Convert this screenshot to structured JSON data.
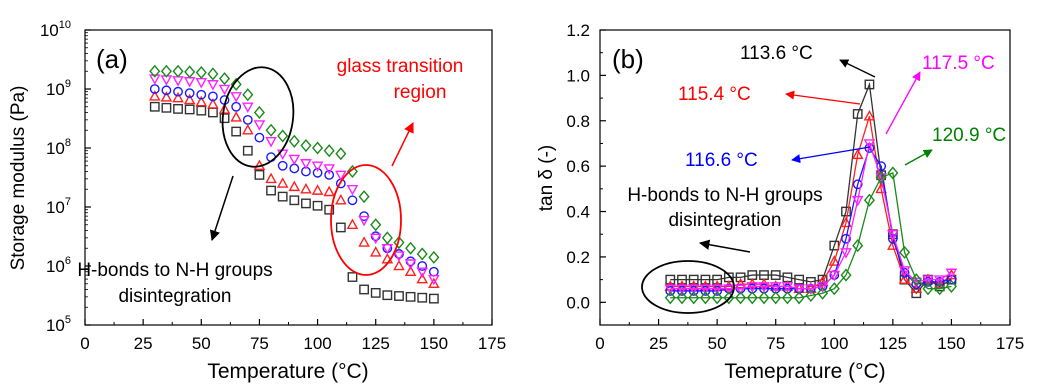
{
  "chart_data": [
    {
      "type": "scatter",
      "panel_label": "(a)",
      "xlabel": "Temperature (°C)",
      "ylabel": "Storage modulus (Pa)",
      "xlim": [
        0,
        175
      ],
      "ylim_log10": [
        5,
        10
      ],
      "yscale": "log",
      "x_ticks": [
        "0",
        "25",
        "50",
        "75",
        "100",
        "125",
        "150",
        "175"
      ],
      "y_tick_base": "10",
      "y_tick_exponents": [
        "5",
        "6",
        "7",
        "8",
        "9",
        "10"
      ],
      "grid": false,
      "series": [
        {
          "color": "#333333",
          "marker": "square",
          "x": [
            30,
            35,
            40,
            45,
            50,
            55,
            60,
            65,
            70,
            75,
            80,
            85,
            90,
            95,
            100,
            105,
            110,
            115,
            120,
            125,
            130,
            135,
            140,
            145,
            150
          ],
          "y": [
            500000000.0,
            480000000.0,
            460000000.0,
            450000000.0,
            430000000.0,
            400000000.0,
            320000000.0,
            190000000.0,
            90000000.0,
            35000000.0,
            19000000.0,
            15000000.0,
            13000000.0,
            11500000.0,
            10500000.0,
            9000000.0,
            4500000.0,
            650000.0,
            400000.0,
            350000.0,
            320000.0,
            310000.0,
            300000.0,
            290000.0,
            280000.0
          ]
        },
        {
          "color": "#ff2020",
          "marker": "triangle-up",
          "x": [
            30,
            35,
            40,
            45,
            50,
            55,
            60,
            65,
            70,
            75,
            80,
            85,
            90,
            95,
            100,
            105,
            110,
            115,
            120,
            125,
            130,
            135,
            140,
            145,
            150
          ],
          "y": [
            750000000.0,
            720000000.0,
            700000000.0,
            650000000.0,
            600000000.0,
            550000000.0,
            450000000.0,
            330000000.0,
            200000000.0,
            50000000.0,
            30000000.0,
            25000000.0,
            22000000.0,
            20000000.0,
            19000000.0,
            18000000.0,
            13000000.0,
            5000000.0,
            2500000.0,
            1700000.0,
            1300000.0,
            1000000.0,
            800000.0,
            600000.0,
            500000.0
          ]
        },
        {
          "color": "#1a1aff",
          "marker": "circle",
          "x": [
            30,
            35,
            40,
            45,
            50,
            55,
            60,
            65,
            70,
            75,
            80,
            85,
            90,
            95,
            100,
            105,
            110,
            115,
            120,
            125,
            130,
            135,
            140,
            145,
            150
          ],
          "y": [
            1000000000.0,
            950000000.0,
            900000000.0,
            850000000.0,
            800000000.0,
            750000000.0,
            650000000.0,
            500000000.0,
            300000000.0,
            150000000.0,
            70000000.0,
            50000000.0,
            45000000.0,
            40000000.0,
            38000000.0,
            35000000.0,
            25000000.0,
            13000000.0,
            7000000.0,
            3200000.0,
            2000000.0,
            1600000.0,
            1200000.0,
            1000000.0,
            800000.0
          ]
        },
        {
          "color": "#ff20ff",
          "marker": "triangle-down",
          "x": [
            30,
            35,
            40,
            45,
            50,
            55,
            60,
            65,
            70,
            75,
            80,
            85,
            90,
            95,
            100,
            105,
            110,
            115,
            120,
            125,
            130,
            135,
            140,
            145,
            150
          ],
          "y": [
            1500000000.0,
            1450000000.0,
            1400000000.0,
            1350000000.0,
            1300000000.0,
            1200000000.0,
            1000000000.0,
            750000000.0,
            500000000.0,
            250000000.0,
            130000000.0,
            80000000.0,
            65000000.0,
            55000000.0,
            50000000.0,
            45000000.0,
            35000000.0,
            20000000.0,
            6000000.0,
            3000000.0,
            2000000.0,
            1500000.0,
            1100000.0,
            800000.0,
            600000.0
          ]
        },
        {
          "color": "#1a8a1a",
          "marker": "diamond",
          "x": [
            30,
            35,
            40,
            45,
            50,
            55,
            60,
            65,
            70,
            75,
            80,
            85,
            90,
            95,
            100,
            105,
            110,
            115,
            120,
            125,
            130,
            135,
            140,
            145,
            150
          ],
          "y": [
            2000000000.0,
            2000000000.0,
            2000000000.0,
            1950000000.0,
            1900000000.0,
            1800000000.0,
            1500000000.0,
            1200000000.0,
            800000000.0,
            400000000.0,
            200000000.0,
            160000000.0,
            130000000.0,
            110000000.0,
            100000000.0,
            90000000.0,
            80000000.0,
            40000000.0,
            15000000.0,
            5000000.0,
            3000000.0,
            2500000.0,
            2000000.0,
            1600000.0,
            1400000.0
          ]
        }
      ],
      "annotations": [
        {
          "text": "glass transition",
          "color": "#ff0000"
        },
        {
          "text": "region",
          "color": "#ff0000"
        },
        {
          "text": "H-bonds to N-H groups",
          "color": "#000000"
        },
        {
          "text": "disintegration",
          "color": "#000000"
        }
      ]
    },
    {
      "type": "scatter",
      "panel_label": "(b)",
      "xlabel": "Temeprature (°C)",
      "ylabel": "tan δ (-)",
      "xlim": [
        0,
        175
      ],
      "ylim": [
        -0.1,
        1.2
      ],
      "x_ticks": [
        "0",
        "25",
        "50",
        "75",
        "100",
        "125",
        "150",
        "175"
      ],
      "y_ticks": [
        "0.0",
        "0.2",
        "0.4",
        "0.6",
        "0.8",
        "1.0",
        "1.2"
      ],
      "grid": false,
      "series": [
        {
          "color": "#333333",
          "marker": "square",
          "x": [
            30,
            35,
            40,
            45,
            50,
            55,
            60,
            65,
            70,
            75,
            80,
            85,
            90,
            95,
            100,
            105,
            110,
            115,
            120,
            125,
            130,
            135,
            140,
            145,
            150
          ],
          "y": [
            0.1,
            0.1,
            0.1,
            0.1,
            0.1,
            0.11,
            0.11,
            0.12,
            0.12,
            0.12,
            0.11,
            0.1,
            0.09,
            0.1,
            0.25,
            0.4,
            0.83,
            0.96,
            0.56,
            0.3,
            0.1,
            0.04,
            0.1,
            0.07,
            0.1
          ]
        },
        {
          "color": "#ff2020",
          "marker": "triangle-up",
          "x": [
            30,
            35,
            40,
            45,
            50,
            55,
            60,
            65,
            70,
            75,
            80,
            85,
            90,
            95,
            100,
            105,
            110,
            115,
            120,
            125,
            130,
            135,
            140,
            145,
            150
          ],
          "y": [
            0.07,
            0.07,
            0.07,
            0.07,
            0.07,
            0.07,
            0.08,
            0.08,
            0.08,
            0.07,
            0.07,
            0.06,
            0.06,
            0.09,
            0.18,
            0.35,
            0.65,
            0.82,
            0.5,
            0.25,
            0.1,
            0.06,
            0.1,
            0.08,
            0.12
          ]
        },
        {
          "color": "#1a1aff",
          "marker": "circle",
          "x": [
            30,
            35,
            40,
            45,
            50,
            55,
            60,
            65,
            70,
            75,
            80,
            85,
            90,
            95,
            100,
            105,
            110,
            115,
            120,
            125,
            130,
            135,
            140,
            145,
            150
          ],
          "y": [
            0.05,
            0.05,
            0.05,
            0.05,
            0.05,
            0.06,
            0.06,
            0.06,
            0.06,
            0.06,
            0.06,
            0.06,
            0.06,
            0.07,
            0.12,
            0.28,
            0.52,
            0.68,
            0.6,
            0.28,
            0.13,
            0.08,
            0.09,
            0.09,
            0.1
          ]
        },
        {
          "color": "#ff20ff",
          "marker": "triangle-down",
          "x": [
            30,
            35,
            40,
            45,
            50,
            55,
            60,
            65,
            70,
            75,
            80,
            85,
            90,
            95,
            100,
            105,
            110,
            115,
            120,
            125,
            130,
            135,
            140,
            145,
            150
          ],
          "y": [
            0.06,
            0.06,
            0.06,
            0.06,
            0.06,
            0.06,
            0.06,
            0.07,
            0.07,
            0.07,
            0.07,
            0.06,
            0.06,
            0.07,
            0.12,
            0.22,
            0.45,
            0.7,
            0.55,
            0.3,
            0.14,
            0.09,
            0.1,
            0.1,
            0.13
          ]
        },
        {
          "color": "#1a8a1a",
          "marker": "diamond",
          "x": [
            30,
            35,
            40,
            45,
            50,
            55,
            60,
            65,
            70,
            75,
            80,
            85,
            90,
            95,
            100,
            105,
            110,
            115,
            120,
            125,
            130,
            135,
            140,
            145,
            150
          ],
          "y": [
            0.02,
            0.02,
            0.02,
            0.02,
            0.02,
            0.02,
            0.02,
            0.02,
            0.02,
            0.02,
            0.02,
            0.02,
            0.03,
            0.04,
            0.06,
            0.12,
            0.25,
            0.45,
            0.55,
            0.57,
            0.22,
            0.1,
            0.06,
            0.06,
            0.07
          ]
        }
      ],
      "annotations": [
        {
          "text": "113.6 °C",
          "color": "#000000"
        },
        {
          "text": "115.4 °C",
          "color": "#ff0000"
        },
        {
          "text": "116.6 °C",
          "color": "#0000ff"
        },
        {
          "text": "117.5 °C",
          "color": "#ff00ff"
        },
        {
          "text": "120.9 °C",
          "color": "#008000"
        },
        {
          "text": "H-bonds to N-H groups",
          "color": "#000000"
        },
        {
          "text": "disintegration",
          "color": "#000000"
        }
      ]
    }
  ]
}
